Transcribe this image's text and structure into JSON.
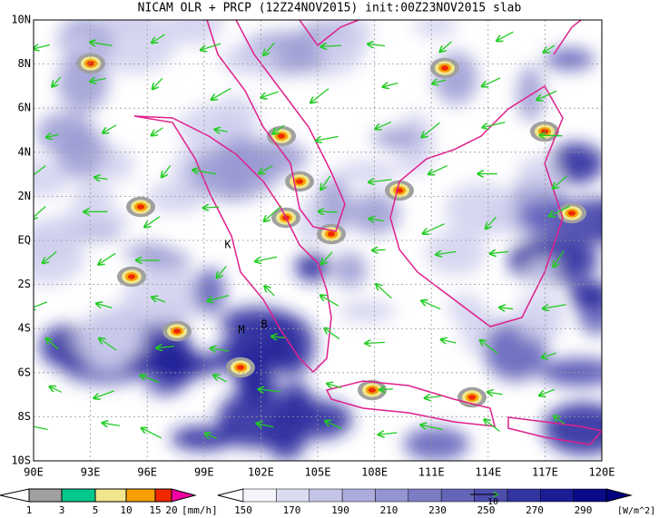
{
  "map": {
    "title": "NICAM OLR + PRCP (12Z24NOV2015) init:00Z23NOV2015 slab",
    "lon_labels": [
      "90E",
      "93E",
      "96E",
      "99E",
      "102E",
      "105E",
      "108E",
      "111E",
      "114E",
      "117E",
      "120E"
    ],
    "lat_labels": [
      "10N",
      "8N",
      "6N",
      "4N",
      "2N",
      "EQ",
      "2S",
      "4S",
      "6S",
      "8S",
      "10S"
    ],
    "sites": [
      "K",
      "M",
      "B"
    ],
    "prcp_labels": [
      "1",
      "3",
      "5",
      "10",
      "15",
      "20"
    ],
    "prcp_unit": "[mm/h]",
    "olr_labels": [
      "150",
      "170",
      "190",
      "210",
      "230",
      "250",
      "270",
      "290"
    ],
    "olr_unit": "[W/m^2]",
    "vector_ref": "10"
  }
}
